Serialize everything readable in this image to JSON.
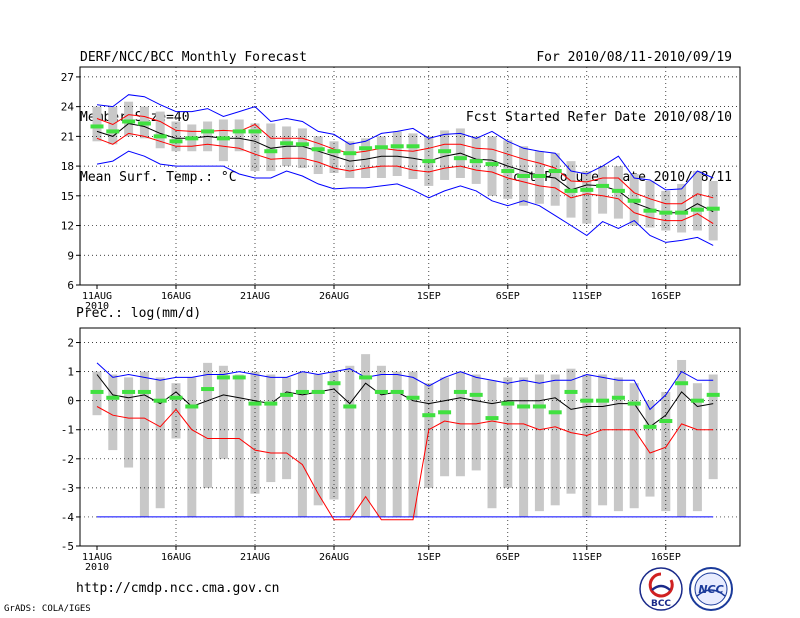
{
  "header": {
    "left": [
      "DERF/NCC/BCC Monthly Forecast",
      "Member Size=40",
      "Mean Surf. Temp.: °C"
    ],
    "right": [
      "For 2010/08/11-2010/09/19",
      "Fcst Started Refer Date 2010/08/10",
      "Fcst Produced Date 2010/08/11"
    ]
  },
  "footer": {
    "url": "http://cmdp.ncc.cma.gov.cn",
    "credit": "GrADS: COLA/IGES",
    "logo_bcc": "BCC",
    "logo_ncc": "NCC"
  },
  "colors": {
    "box": "#c8c8c8",
    "ensemble_mean": "#000000",
    "member_mark": "#40e040",
    "envelope": "#0000ff",
    "spread": "#ff0000",
    "grid": "#000000"
  },
  "chart_data": [
    {
      "type": "box",
      "title": "Mean Surf. Temp.: °C",
      "ylabel": "",
      "xlabel": "",
      "ylim": [
        6,
        28
      ],
      "yticks": [
        6,
        9,
        12,
        15,
        18,
        21,
        24,
        27
      ],
      "xticks": [
        {
          "day": 1,
          "label": "11AUG"
        },
        {
          "day": 6,
          "label": "16AUG"
        },
        {
          "day": 11,
          "label": "21AUG"
        },
        {
          "day": 16,
          "label": "26AUG"
        },
        {
          "day": 22,
          "label": "1SEP"
        },
        {
          "day": 27,
          "label": "6SEP"
        },
        {
          "day": 32,
          "label": "11SEP"
        },
        {
          "day": 37,
          "label": "16SEP"
        }
      ],
      "year_label": "2010",
      "grid": true,
      "days": [
        1,
        2,
        3,
        4,
        5,
        6,
        7,
        8,
        9,
        10,
        11,
        12,
        13,
        14,
        15,
        16,
        17,
        18,
        19,
        20,
        21,
        22,
        23,
        24,
        25,
        26,
        27,
        28,
        29,
        30,
        31,
        32,
        33,
        34,
        35,
        36,
        37,
        38,
        39,
        40
      ],
      "series": [
        {
          "name": "upper-envelope",
          "values": [
            24.2,
            24.0,
            25.2,
            25.0,
            24.2,
            23.5,
            23.5,
            23.8,
            23.0,
            23.5,
            24.0,
            22.5,
            22.8,
            22.5,
            21.5,
            21.2,
            20.2,
            20.5,
            21.3,
            21.5,
            21.8,
            20.8,
            21.2,
            21.3,
            20.8,
            21.5,
            20.5,
            19.8,
            19.5,
            19.3,
            17.5,
            17.2,
            18.0,
            19.0,
            16.8,
            16.6,
            15.6,
            15.7,
            17.5,
            16.8
          ]
        },
        {
          "name": "upper-spread",
          "values": [
            22.8,
            22.2,
            23.2,
            23.0,
            22.5,
            21.6,
            21.5,
            21.5,
            21.6,
            21.5,
            22.2,
            20.8,
            20.8,
            20.8,
            20.3,
            19.7,
            19.3,
            19.5,
            19.8,
            19.6,
            19.5,
            19.8,
            20.2,
            20.2,
            19.8,
            19.7,
            19.2,
            18.7,
            18.3,
            17.8,
            16.5,
            16.4,
            16.8,
            16.8,
            15.3,
            14.7,
            14.2,
            14.2,
            15.2,
            14.8
          ]
        },
        {
          "name": "ensemble-mean",
          "values": [
            21.5,
            21.0,
            22.3,
            22.0,
            21.3,
            20.8,
            20.8,
            21.0,
            20.8,
            20.8,
            20.5,
            19.8,
            20.0,
            20.0,
            19.5,
            19.0,
            18.5,
            18.7,
            19.0,
            19.0,
            18.8,
            18.5,
            19.0,
            19.3,
            18.7,
            18.6,
            18.0,
            17.5,
            17.0,
            16.8,
            15.6,
            16.1,
            16.0,
            15.5,
            14.3,
            13.7,
            13.3,
            13.3,
            14.2,
            13.4
          ]
        },
        {
          "name": "lower-spread",
          "values": [
            20.8,
            20.2,
            21.3,
            21.0,
            20.5,
            20.0,
            20.0,
            20.2,
            20.0,
            19.8,
            19.2,
            18.7,
            18.8,
            18.8,
            18.4,
            17.8,
            17.5,
            17.8,
            18.0,
            18.0,
            17.6,
            17.4,
            17.8,
            18.0,
            17.6,
            17.4,
            16.8,
            16.4,
            16.0,
            15.8,
            14.8,
            15.2,
            15.0,
            14.7,
            13.3,
            12.8,
            12.5,
            12.5,
            13.2,
            12.2
          ]
        },
        {
          "name": "lower-envelope",
          "values": [
            18.2,
            18.5,
            19.5,
            19.0,
            18.2,
            18.0,
            18.0,
            18.0,
            18.0,
            17.2,
            16.8,
            16.8,
            17.5,
            17.0,
            16.2,
            15.7,
            15.8,
            15.8,
            16.0,
            16.2,
            15.6,
            14.8,
            15.5,
            16.0,
            15.5,
            14.5,
            14.0,
            14.5,
            14.0,
            13.0,
            12.0,
            11.0,
            12.4,
            11.7,
            12.5,
            11.0,
            10.3,
            10.5,
            10.8,
            10.0
          ]
        },
        {
          "name": "member-mark",
          "values": [
            22.0,
            21.5,
            22.5,
            22.3,
            21.0,
            20.5,
            20.8,
            21.5,
            20.8,
            21.5,
            21.5,
            19.5,
            20.3,
            20.2,
            19.7,
            19.5,
            19.3,
            19.8,
            19.9,
            20.0,
            20.0,
            18.5,
            19.5,
            18.8,
            18.5,
            18.2,
            17.5,
            17.0,
            17.0,
            17.5,
            15.5,
            15.6,
            16.0,
            15.5,
            14.5,
            13.5,
            13.3,
            13.3,
            13.6,
            13.7
          ]
        }
      ],
      "box_ranges": [
        [
          20.5,
          24.0
        ],
        [
          20.2,
          24.0
        ],
        [
          21.0,
          24.5
        ],
        [
          20.8,
          24.0
        ],
        [
          19.8,
          23.5
        ],
        [
          19.5,
          22.5
        ],
        [
          19.5,
          22.2
        ],
        [
          19.5,
          22.5
        ],
        [
          18.5,
          22.7
        ],
        [
          19.5,
          22.7
        ],
        [
          17.5,
          22.3
        ],
        [
          17.5,
          22.3
        ],
        [
          18.0,
          22.0
        ],
        [
          17.8,
          21.8
        ],
        [
          17.2,
          21.0
        ],
        [
          17.3,
          20.5
        ],
        [
          16.8,
          20.5
        ],
        [
          16.8,
          20.8
        ],
        [
          16.8,
          21.0
        ],
        [
          17.0,
          21.5
        ],
        [
          16.7,
          21.3
        ],
        [
          16.0,
          21.0
        ],
        [
          16.6,
          21.6
        ],
        [
          16.8,
          21.8
        ],
        [
          16.2,
          21.0
        ],
        [
          15.0,
          21.0
        ],
        [
          14.7,
          20.6
        ],
        [
          14.0,
          20.0
        ],
        [
          14.2,
          19.5
        ],
        [
          14.0,
          19.3
        ],
        [
          12.8,
          18.5
        ],
        [
          12.2,
          17.5
        ],
        [
          13.2,
          18.0
        ],
        [
          12.7,
          18.0
        ],
        [
          12.0,
          17.2
        ],
        [
          11.8,
          16.5
        ],
        [
          11.5,
          15.5
        ],
        [
          11.3,
          16.2
        ],
        [
          11.5,
          17.5
        ],
        [
          10.5,
          16.5
        ]
      ]
    },
    {
      "type": "box",
      "title": "Prec.: log(mm/d)",
      "ylabel": "",
      "xlabel": "",
      "ylim": [
        -5,
        2.5
      ],
      "yticks": [
        -5,
        -4,
        -3,
        -2,
        -1,
        0,
        1,
        2
      ],
      "xticks": [
        {
          "day": 1,
          "label": "11AUG"
        },
        {
          "day": 6,
          "label": "16AUG"
        },
        {
          "day": 11,
          "label": "21AUG"
        },
        {
          "day": 16,
          "label": "26AUG"
        },
        {
          "day": 22,
          "label": "1SEP"
        },
        {
          "day": 27,
          "label": "6SEP"
        },
        {
          "day": 32,
          "label": "11SEP"
        },
        {
          "day": 37,
          "label": "16SEP"
        }
      ],
      "year_label": "2010",
      "grid": true,
      "days": [
        1,
        2,
        3,
        4,
        5,
        6,
        7,
        8,
        9,
        10,
        11,
        12,
        13,
        14,
        15,
        16,
        17,
        18,
        19,
        20,
        21,
        22,
        23,
        24,
        25,
        26,
        27,
        28,
        29,
        30,
        31,
        32,
        33,
        34,
        35,
        36,
        37,
        38,
        39,
        40
      ],
      "series": [
        {
          "name": "upper-envelope",
          "values": [
            1.3,
            0.8,
            0.9,
            0.8,
            0.7,
            0.8,
            0.8,
            0.9,
            0.9,
            1.0,
            0.9,
            0.8,
            0.8,
            1.0,
            0.9,
            1.0,
            1.1,
            0.8,
            0.9,
            0.9,
            0.8,
            0.5,
            0.8,
            1.0,
            0.8,
            0.7,
            0.6,
            0.7,
            0.6,
            0.7,
            0.7,
            0.9,
            0.8,
            0.7,
            0.7,
            -0.3,
            0.2,
            1.0,
            0.7,
            0.7
          ]
        },
        {
          "name": "ensemble-mean",
          "values": [
            0.9,
            0.2,
            0.1,
            0.2,
            -0.1,
            0.3,
            -0.2,
            0.0,
            0.2,
            0.1,
            0.0,
            -0.1,
            0.3,
            0.2,
            0.3,
            0.4,
            -0.1,
            0.6,
            0.2,
            0.3,
            0.0,
            -0.1,
            0.0,
            0.1,
            0.0,
            -0.1,
            0.0,
            0.0,
            0.0,
            0.1,
            -0.3,
            -0.2,
            -0.2,
            -0.1,
            -0.1,
            -0.9,
            -0.5,
            0.3,
            -0.2,
            -0.1
          ]
        },
        {
          "name": "lower-spread",
          "values": [
            -0.2,
            -0.5,
            -0.6,
            -0.6,
            -0.9,
            -0.3,
            -1.0,
            -1.3,
            -1.3,
            -1.3,
            -1.7,
            -1.8,
            -1.8,
            -2.2,
            -3.2,
            -4.1,
            -4.1,
            -3.3,
            -4.1,
            -4.1,
            -4.1,
            -1.0,
            -0.7,
            -0.8,
            -0.8,
            -0.7,
            -0.8,
            -0.8,
            -1.0,
            -0.9,
            -1.1,
            -1.2,
            -1.0,
            -1.0,
            -1.0,
            -1.8,
            -1.6,
            -0.8,
            -1.0,
            -1.0
          ]
        },
        {
          "name": "member-mark",
          "values": [
            0.3,
            0.1,
            0.3,
            0.3,
            0.0,
            0.1,
            -0.2,
            0.4,
            0.8,
            0.8,
            -0.1,
            -0.1,
            0.2,
            0.3,
            0.3,
            0.6,
            -0.2,
            0.8,
            0.3,
            0.3,
            0.1,
            -0.5,
            -0.4,
            0.3,
            0.2,
            -0.6,
            -0.1,
            -0.2,
            -0.2,
            -0.4,
            0.3,
            0.0,
            0.0,
            0.1,
            -0.1,
            -0.9,
            -0.7,
            0.6,
            0.0,
            0.2
          ]
        }
      ],
      "box_ranges": [
        [
          -0.5,
          1.0
        ],
        [
          -1.7,
          0.9
        ],
        [
          -2.3,
          0.8
        ],
        [
          -4.0,
          1.0
        ],
        [
          -3.7,
          0.8
        ],
        [
          -1.3,
          0.6
        ],
        [
          -4.0,
          0.8
        ],
        [
          -3.0,
          1.3
        ],
        [
          -2.0,
          1.2
        ],
        [
          -4.0,
          0.9
        ],
        [
          -3.2,
          1.0
        ],
        [
          -2.8,
          0.9
        ],
        [
          -2.7,
          0.8
        ],
        [
          -4.0,
          1.0
        ],
        [
          -3.6,
          0.9
        ],
        [
          -3.4,
          1.0
        ],
        [
          -4.0,
          1.2
        ],
        [
          -4.0,
          1.6
        ],
        [
          -4.0,
          1.2
        ],
        [
          -4.0,
          1.0
        ],
        [
          -4.0,
          1.0
        ],
        [
          -3.0,
          0.6
        ],
        [
          -2.6,
          0.8
        ],
        [
          -2.6,
          1.0
        ],
        [
          -2.4,
          0.9
        ],
        [
          -3.7,
          0.7
        ],
        [
          -3.0,
          0.8
        ],
        [
          -4.0,
          0.8
        ],
        [
          -3.8,
          0.9
        ],
        [
          -3.6,
          0.9
        ],
        [
          -3.2,
          1.1
        ],
        [
          -4.0,
          0.9
        ],
        [
          -3.6,
          0.9
        ],
        [
          -3.8,
          0.8
        ],
        [
          -3.7,
          0.6
        ],
        [
          -3.3,
          0.0
        ],
        [
          -3.8,
          0.3
        ],
        [
          -4.0,
          1.4
        ],
        [
          -3.8,
          0.6
        ],
        [
          -2.7,
          0.9
        ]
      ],
      "floor_line": -4
    }
  ]
}
